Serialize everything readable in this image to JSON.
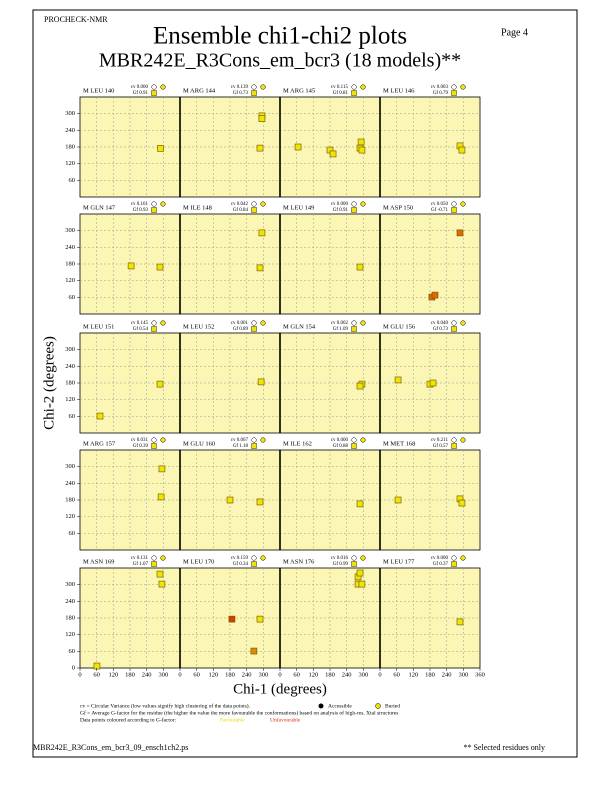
{
  "header": {
    "program": "PROCHECK-NMR",
    "page": "Page  4",
    "title": "Ensemble chi1-chi2 plots",
    "subtitle": "MBR242E_R3Cons_em_bcr3 (18 models)**"
  },
  "axes": {
    "xlabel": "Chi-1 (degrees)",
    "ylabel": "Chi-2 (degrees)",
    "xlim": [
      0,
      360
    ],
    "ylim": [
      0,
      360
    ],
    "xticks": [
      0,
      60,
      120,
      180,
      240,
      300,
      360
    ],
    "yticks": [
      0,
      60,
      120,
      180,
      240,
      300
    ]
  },
  "chart_data": [
    {
      "type": "scatter",
      "title": "M LEU 140",
      "cv": "cv 0.000",
      "gf": "Gf 0.91",
      "series": [
        {
          "color": "#f0e400",
          "x": [
            290
          ],
          "values": [
            175
          ]
        }
      ]
    },
    {
      "type": "scatter",
      "title": "M ARG 144",
      "cv": "cv 0.139",
      "gf": "Gf 0.73",
      "series": [
        {
          "color": "#f0e400",
          "x": [
            295,
            295,
            288
          ],
          "values": [
            292,
            282,
            176
          ]
        }
      ]
    },
    {
      "type": "scatter",
      "title": "M ARG 145",
      "cv": "cv 0.115",
      "gf": "Gf 0.81",
      "series": [
        {
          "color": "#f0e400",
          "x": [
            65,
            180,
            191,
            292,
            288,
            295
          ],
          "values": [
            180,
            169,
            155,
            198,
            176,
            169
          ]
        }
      ]
    },
    {
      "type": "scatter",
      "title": "M LEU 146",
      "cv": "cv 0.003",
      "gf": "Gf 0.79",
      "series": [
        {
          "color": "#f0e400",
          "x": [
            288,
            295
          ],
          "values": [
            184,
            169
          ]
        }
      ]
    },
    {
      "type": "scatter",
      "title": "M GLN 147",
      "cv": "cv 0.161",
      "gf": "Gf 0.93",
      "series": [
        {
          "color": "#f0e400",
          "x": [
            184,
            288
          ],
          "values": [
            173,
            169
          ]
        }
      ]
    },
    {
      "type": "scatter",
      "title": "M ILE 148",
      "cv": "cv 0.042",
      "gf": "Gf 0.84",
      "series": [
        {
          "color": "#f0e400",
          "x": [
            295,
            288
          ],
          "values": [
            292,
            166
          ]
        }
      ]
    },
    {
      "type": "scatter",
      "title": "M LEU 149",
      "cv": "cv 0.000",
      "gf": "Gf 0.91",
      "series": [
        {
          "color": "#f0e400",
          "x": [
            288
          ],
          "values": [
            169
          ]
        }
      ]
    },
    {
      "type": "scatter",
      "title": "M ASP 150",
      "cv": "cv 0.050",
      "gf": "Gf -0.71",
      "series": [
        {
          "color": "#e06a00",
          "x": [
            288,
            187,
            198
          ],
          "values": [
            292,
            61,
            68
          ]
        }
      ]
    },
    {
      "type": "scatter",
      "title": "M LEU 151",
      "cv": "cv 0.145",
      "gf": "Gf 0.54",
      "series": [
        {
          "color": "#f0e400",
          "x": [
            72,
            288
          ],
          "values": [
            61,
            176
          ]
        }
      ]
    },
    {
      "type": "scatter",
      "title": "M LEU 152",
      "cv": "cv 0.001",
      "gf": "Gf 0.89",
      "series": [
        {
          "color": "#f0e400",
          "x": [
            292
          ],
          "values": [
            184
          ]
        }
      ]
    },
    {
      "type": "scatter",
      "title": "M GLN 154",
      "cv": "cv 0.002",
      "gf": "Gf 1.09",
      "series": [
        {
          "color": "#f0e400",
          "x": [
            295,
            288
          ],
          "values": [
            176,
            169
          ]
        }
      ]
    },
    {
      "type": "scatter",
      "title": "M GLU 156",
      "cv": "cv 0.040",
      "gf": "Gf 0.73",
      "series": [
        {
          "color": "#f0e400",
          "x": [
            65,
            180,
            191
          ],
          "values": [
            191,
            176,
            180
          ]
        }
      ]
    },
    {
      "type": "scatter",
      "title": "M ARG 157",
      "cv": "cv 0.031",
      "gf": "Gf 0.39",
      "series": [
        {
          "color": "#f0e400",
          "x": [
            295,
            292
          ],
          "values": [
            292,
            191
          ]
        }
      ]
    },
    {
      "type": "scatter",
      "title": "M GLU 160",
      "cv": "cv 0.067",
      "gf": "Gf 1.18",
      "series": [
        {
          "color": "#f0e400",
          "x": [
            180,
            288
          ],
          "values": [
            180,
            173
          ]
        }
      ]
    },
    {
      "type": "scatter",
      "title": "M ILE 162",
      "cv": "cv 0.000",
      "gf": "Gf 0.88",
      "series": [
        {
          "color": "#f0e400",
          "x": [
            288
          ],
          "values": [
            166
          ]
        }
      ]
    },
    {
      "type": "scatter",
      "title": "M MET 168",
      "cv": "cv 0.211",
      "gf": "Gf 0.57",
      "series": [
        {
          "color": "#f0e400",
          "x": [
            65,
            288,
            295
          ],
          "values": [
            180,
            184,
            169
          ]
        }
      ]
    },
    {
      "type": "scatter",
      "title": "M ASN 169",
      "cv": "cv 0.131",
      "gf": "Gf 1.07",
      "series": [
        {
          "color": "#f0e400",
          "x": [
            61,
            288,
            295
          ],
          "values": [
            7,
            338,
            302
          ]
        }
      ]
    },
    {
      "type": "scatter",
      "title": "M LEU 170",
      "cv": "cv 0.159",
      "gf": "Gf 0.34",
      "series": [
        {
          "color": "#d04000",
          "x": [
            187
          ],
          "values": [
            176
          ]
        },
        {
          "color": "#e08a00",
          "x": [
            266
          ],
          "values": [
            61
          ]
        },
        {
          "color": "#f0e400",
          "x": [
            288
          ],
          "values": [
            176
          ]
        }
      ]
    },
    {
      "type": "scatter",
      "title": "M ASN 176",
      "cv": "cv 0.016",
      "gf": "Gf 0.99",
      "series": [
        {
          "color": "#f0e400",
          "x": [
            281,
            288,
            281,
            295
          ],
          "values": [
            328,
            342,
            302,
            302
          ]
        }
      ]
    },
    {
      "type": "scatter",
      "title": "M LEU 177",
      "cv": "cv 0.000",
      "gf": "Gf 0.37",
      "series": [
        {
          "color": "#f0e400",
          "x": [
            288
          ],
          "values": [
            166
          ]
        }
      ]
    }
  ],
  "legend": {
    "cv_note": "cv = Circular Variance (low values signify high clustering of the data points).",
    "accessible": "Accessible",
    "buried": "Buried",
    "gf_note": "Gf = Average G-factor for the residue (the higher the value the more favourable the conformations) based on analysis of high-res. Xtal structures",
    "colour_note": "Data points coloured according to G-factor:",
    "favourable": "Favourable",
    "unfavourable": "Unfavourable"
  },
  "footer": {
    "file": "MBR242E_R3Cons_em_bcr3_09_ensch1ch2.ps",
    "note": "** Selected residues only"
  }
}
